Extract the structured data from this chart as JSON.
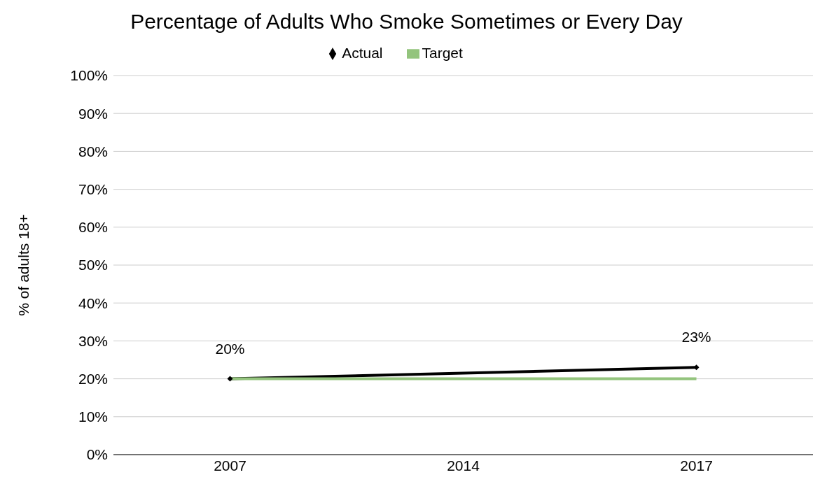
{
  "chart_data": {
    "type": "line",
    "title": "Percentage of Adults Who Smoke Sometimes or Every Day",
    "ylabel": "% of adults 18+",
    "categories": [
      "2007",
      "2014",
      "2017"
    ],
    "series": [
      {
        "name": "Actual",
        "color": "#000000",
        "values": [
          20,
          null,
          23
        ],
        "marker": "diamond",
        "value_labels": [
          "20%",
          null,
          "23%"
        ]
      },
      {
        "name": "Target",
        "color": "#93c47d",
        "values": [
          20,
          20,
          20
        ],
        "marker": "none"
      }
    ],
    "ylim": [
      0,
      100
    ],
    "yticks": [
      {
        "value": 0,
        "label": "0%"
      },
      {
        "value": 10,
        "label": "10%"
      },
      {
        "value": 20,
        "label": "20%"
      },
      {
        "value": 30,
        "label": "30%"
      },
      {
        "value": 40,
        "label": "40%"
      },
      {
        "value": 50,
        "label": "50%"
      },
      {
        "value": 60,
        "label": "60%"
      },
      {
        "value": 70,
        "label": "70%"
      },
      {
        "value": 80,
        "label": "80%"
      },
      {
        "value": 90,
        "label": "90%"
      },
      {
        "value": 100,
        "label": "100%"
      }
    ],
    "grid": "y",
    "legend": "top",
    "line_style": "solid"
  }
}
